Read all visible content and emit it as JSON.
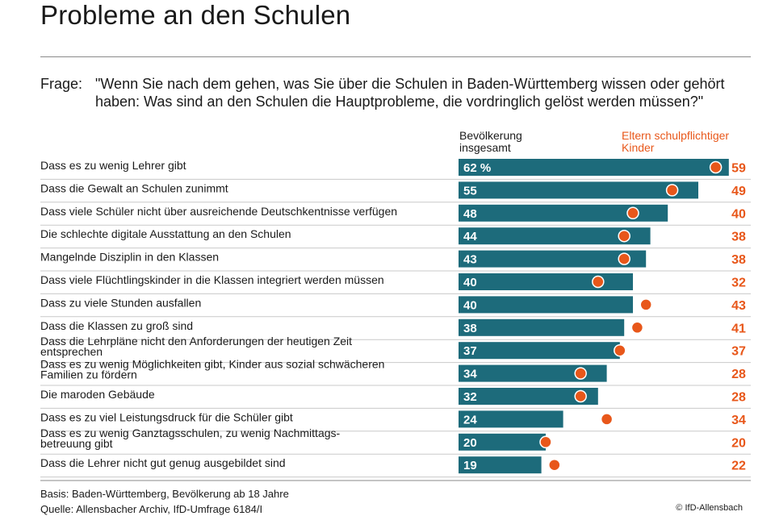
{
  "title": "Probleme an den Schulen",
  "question": {
    "prefix": "Frage:",
    "text": "\"Wenn Sie nach dem gehen, was Sie über die Schulen in Baden-Württemberg wissen oder gehört haben: Was sind an den Schulen die Hauptprobleme, die vordringlich gelöst werden müssen?\""
  },
  "legend": {
    "population": "Bevölkerung insgesamt",
    "parents": "Eltern schulpflichtiger Kinder"
  },
  "colors": {
    "bar": "#1d6b7b",
    "dot": "#e8571a",
    "parents_text": "#e8571a"
  },
  "chart_data": {
    "type": "bar",
    "categories": [
      "Dass es zu wenig Lehrer gibt",
      "Dass die Gewalt an Schulen zunimmt",
      "Dass viele Schüler nicht über ausreichende Deutschkentnisse verfügen",
      "Die schlechte digitale Ausstattung an den Schulen",
      "Mangelnde Disziplin in den Klassen",
      "Dass viele Flüchtlingskinder in die Klassen integriert werden müssen",
      "Dass zu viele Stunden ausfallen",
      "Dass die Klassen zu groß sind",
      "Dass die Lehrpläne nicht den Anforderungen der heutigen Zeit entsprechen",
      "Dass es zu wenig Möglichkeiten gibt, Kinder aus sozial schwächeren Familien zu fördern",
      "Die maroden Gebäude",
      "Dass es zu viel Leistungsdruck für die Schüler gibt",
      "Dass es zu wenig Ganztagsschulen, zu wenig Nachmittags-betreuung gibt",
      "Dass die Lehrer nicht gut genug ausgebildet sind"
    ],
    "category_lines": [
      [
        "Dass es zu wenig Lehrer gibt"
      ],
      [
        "Dass die Gewalt an Schulen zunimmt"
      ],
      [
        "Dass viele Schüler nicht über ausreichende Deutschkentnisse verfügen"
      ],
      [
        "Die schlechte digitale Ausstattung an den Schulen"
      ],
      [
        "Mangelnde Disziplin in den Klassen"
      ],
      [
        "Dass viele Flüchtlingskinder in die Klassen integriert werden müssen"
      ],
      [
        "Dass zu viele Stunden ausfallen"
      ],
      [
        "Dass die Klassen zu groß sind"
      ],
      [
        "Dass die Lehrpläne nicht den Anforderungen der heutigen Zeit",
        "entsprechen"
      ],
      [
        "Dass es zu wenig Möglichkeiten gibt, Kinder aus sozial schwächeren",
        "Familien zu fördern"
      ],
      [
        "Die maroden Gebäude"
      ],
      [
        "Dass es zu viel Leistungsdruck für die Schüler gibt"
      ],
      [
        "Dass es zu wenig Ganztagsschulen, zu wenig Nachmittags-",
        "betreuung gibt"
      ],
      [
        "Dass die Lehrer nicht gut genug ausgebildet sind"
      ]
    ],
    "series": [
      {
        "name": "Bevölkerung insgesamt",
        "values": [
          62,
          55,
          48,
          44,
          43,
          40,
          40,
          38,
          37,
          34,
          32,
          24,
          20,
          19
        ]
      },
      {
        "name": "Eltern schulpflichtiger Kinder",
        "values": [
          59,
          49,
          40,
          38,
          38,
          32,
          43,
          41,
          37,
          28,
          28,
          34,
          20,
          22
        ]
      }
    ],
    "first_value_label": "62 %",
    "xlim": [
      0,
      62
    ]
  },
  "footer": {
    "basis": "Basis: Baden-Württemberg, Bevölkerung ab 18 Jahre",
    "source": "Quelle: Allensbacher Archiv, IfD-Umfrage 6184/I",
    "copyright": "© IfD-Allensbach"
  }
}
